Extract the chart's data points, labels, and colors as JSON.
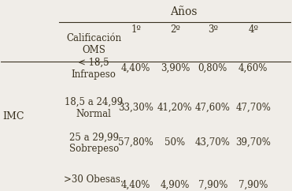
{
  "title": "Años",
  "col_headers": [
    "Calificación\nOMS",
    "1º",
    "2º",
    "3º",
    "4º"
  ],
  "row_label": "IMC",
  "rows": [
    {
      "label": "< 18,5\nInfrapeso",
      "values": [
        "4,40%",
        "3,90%",
        "0,80%",
        "4,60%"
      ]
    },
    {
      "label": "18,5 a 24,99\nNormal",
      "values": [
        "33,30%",
        "41,20%",
        "47,60%",
        "47,70%"
      ]
    },
    {
      "label": "25 a 29,99\nSobrepeso",
      "values": [
        "57,80%",
        "50%",
        "43,70%",
        "39,70%"
      ]
    },
    {
      "label": ">30 Obesas.",
      "values": [
        "4,40%",
        "4,90%",
        "7,90%",
        "7,90%"
      ]
    }
  ],
  "bg_color": "#f0ede8",
  "text_color": "#3a3220",
  "font_size": 8.5,
  "header_font_size": 8.5,
  "title_font_size": 10
}
